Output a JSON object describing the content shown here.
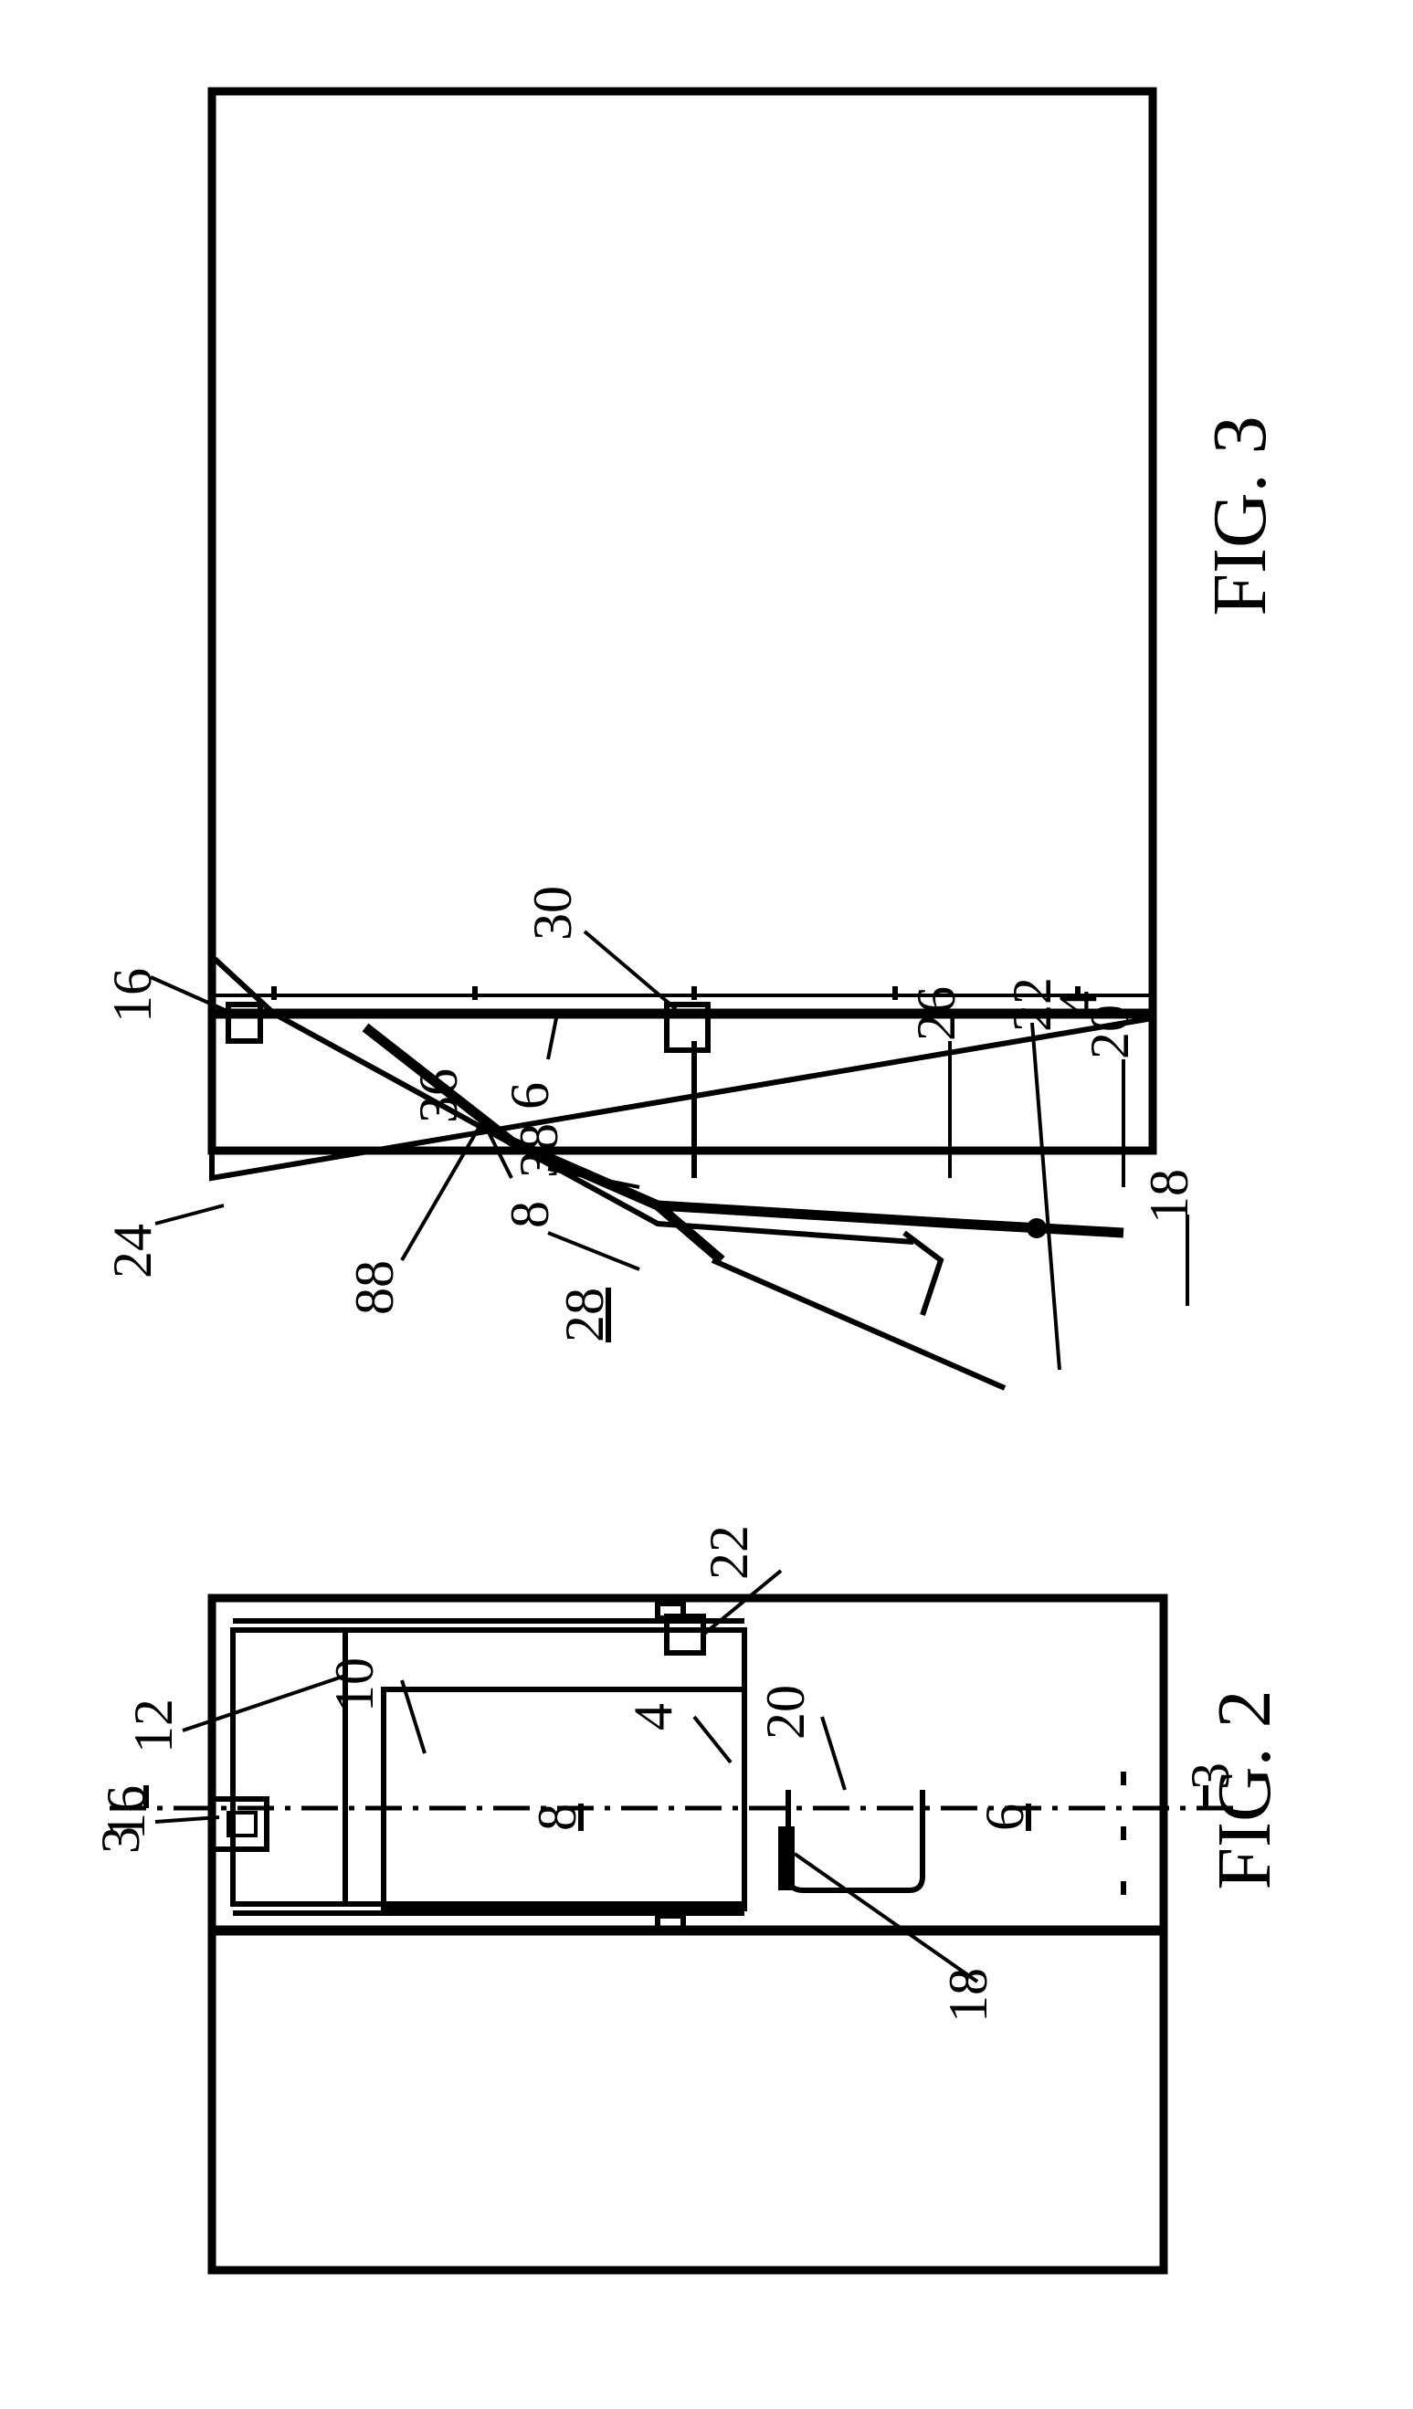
{
  "figures": [
    {
      "caption": "FIG. 2",
      "labels": {
        "l16": "16",
        "l12": "12",
        "l10": "10",
        "l4": "4",
        "l20": "20",
        "l8": "8",
        "l6": "6",
        "l3a": "3",
        "l3b": "3",
        "l22": "22",
        "l18": "18"
      }
    },
    {
      "caption": "FIG. 3",
      "labels": {
        "l16": "16",
        "l24": "24",
        "l88": "88",
        "l28": "28",
        "l30": "30",
        "l6": "6",
        "l36": "36",
        "l38": "38",
        "l8": "8",
        "l26": "26",
        "l22": "22",
        "l20": "20",
        "l18": "18",
        "l4": "4"
      }
    }
  ]
}
